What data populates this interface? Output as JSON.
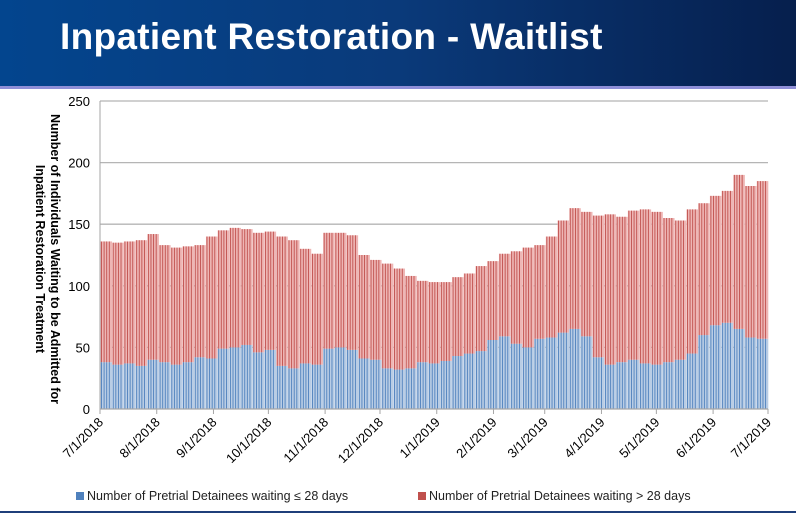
{
  "title": "Inpatient Restoration - Waitlist",
  "chart_data": {
    "type": "bar",
    "stacked": true,
    "title": "Inpatient Restoration - Waitlist",
    "xlabel": "",
    "ylabel": "Number of Individuals Waiting to be Admitted for Inpatient Restoration Treatment",
    "ylim": [
      0,
      250
    ],
    "yticks": [
      "0",
      "50",
      "100",
      "150",
      "200",
      "250"
    ],
    "xrange": [
      "7/1/2018",
      "7/1/2019"
    ],
    "xticks": [
      "7/1/2018",
      "8/1/2018",
      "9/1/2018",
      "10/1/2018",
      "11/1/2018",
      "12/1/2018",
      "1/1/2019",
      "2/1/2019",
      "3/1/2019",
      "4/1/2019",
      "5/1/2019",
      "6/1/2019",
      "7/1/2019"
    ],
    "grid": true,
    "legend_position": "bottom",
    "series": [
      {
        "name": "Number of Pretrial Detainees waiting ≤ 28 days",
        "color": "#4f81bd",
        "values": [
          38,
          36,
          37,
          35,
          40,
          38,
          36,
          38,
          42,
          41,
          49,
          50,
          52,
          46,
          48,
          35,
          33,
          37,
          36,
          49,
          50,
          48,
          41,
          40,
          33,
          32,
          33,
          38,
          37,
          39,
          43,
          45,
          47,
          56,
          59,
          53,
          50,
          57,
          58,
          62,
          65,
          59,
          42,
          36,
          38,
          40,
          37,
          36,
          38,
          40,
          45,
          60,
          68,
          70,
          65,
          58,
          57
        ]
      },
      {
        "name": "Number of Pretrial Detainees waiting > 28 days",
        "color": "#c0504d",
        "values": [
          98,
          99,
          99,
          102,
          102,
          95,
          95,
          94,
          91,
          99,
          96,
          97,
          94,
          97,
          96,
          105,
          104,
          93,
          90,
          94,
          93,
          93,
          84,
          81,
          85,
          82,
          75,
          66,
          66,
          64,
          64,
          65,
          69,
          64,
          67,
          75,
          81,
          76,
          82,
          91,
          98,
          101,
          115,
          122,
          118,
          121,
          125,
          124,
          117,
          113,
          117,
          107,
          105,
          107,
          125,
          123,
          128
        ]
      }
    ]
  }
}
